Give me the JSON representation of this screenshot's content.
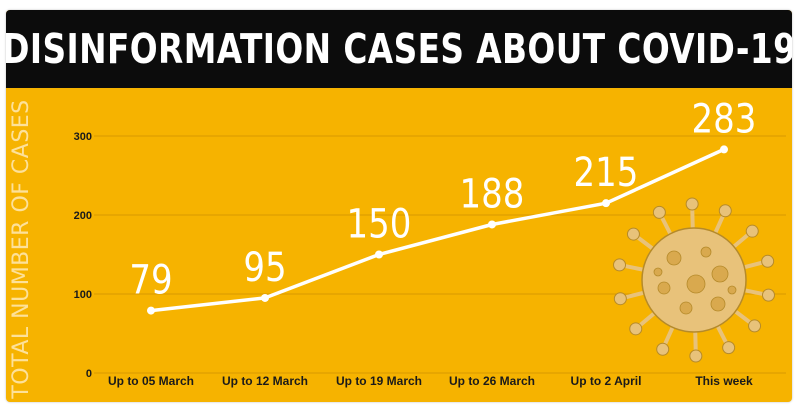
{
  "title": "DISINFORMATION CASES ABOUT COVID-19",
  "colors": {
    "background": "#f6b300",
    "title_bar": "#0c0c0c",
    "line": "#ffffff",
    "grid": "#d89800",
    "virus": "#e8c27a"
  },
  "decoration": {
    "icon": "coronavirus-illustration"
  },
  "chart_data": {
    "type": "line",
    "title": "DISINFORMATION CASES ABOUT COVID-19",
    "xlabel": "",
    "ylabel": "TOTAL NUMBER OF CASES",
    "categories": [
      "Up to 05 March",
      "Up to 12 March",
      "Up to 19 March",
      "Up to 26 March",
      "Up to 2 April",
      "This week"
    ],
    "values": [
      79,
      95,
      150,
      188,
      215,
      283
    ],
    "data_labels": [
      "79",
      "95",
      "150",
      "188",
      "215",
      "283"
    ],
    "ylim": [
      0,
      300
    ],
    "yticks": [
      0,
      100,
      200,
      300
    ],
    "grid": true,
    "legend": "none"
  }
}
